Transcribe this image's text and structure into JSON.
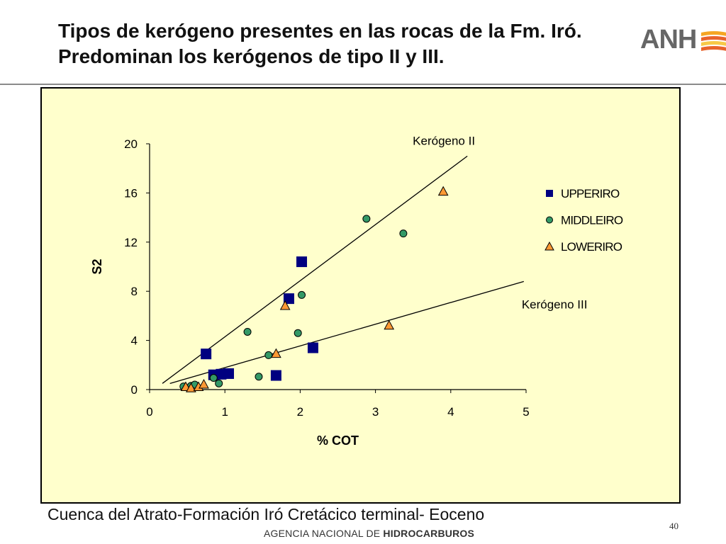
{
  "slide": {
    "title": "Tipos de kerógeno presentes en las rocas de la Fm. Iró. Predominan los kerógenos de tipo II y III.",
    "logo_text": "ANH",
    "caption": "Cuenca del Atrato-Formación Iró Cretácico terminal- Eoceno",
    "agency_prefix": "AGENCIA NACIONAL DE ",
    "agency_bold": "HIDROCARBUROS",
    "page_number": "40"
  },
  "colors": {
    "plot_background": "#ffffcc",
    "upperiro": "#000080",
    "middleiro": "#339966",
    "loweriro": "#ff9933",
    "logo_stripe_1": "#f5a623",
    "logo_stripe_2": "#e8632b",
    "logo_stripe_3": "#f7c948"
  },
  "chart_data": {
    "type": "scatter",
    "xlabel": "% COT",
    "ylabel": "S2",
    "xlim": [
      0,
      5
    ],
    "ylim": [
      0,
      20
    ],
    "xticks": [
      0,
      1,
      2,
      3,
      4,
      5
    ],
    "yticks": [
      0,
      4,
      8,
      12,
      16,
      20
    ],
    "grid": false,
    "legend_position": "right",
    "series": [
      {
        "name": "UPPERIRO",
        "marker": "square",
        "color": "#000080",
        "points": [
          [
            0.75,
            2.9
          ],
          [
            0.85,
            1.2
          ],
          [
            0.95,
            1.25
          ],
          [
            1.05,
            1.3
          ],
          [
            1.68,
            1.15
          ],
          [
            1.85,
            7.4
          ],
          [
            2.02,
            10.4
          ],
          [
            2.17,
            3.4
          ]
        ]
      },
      {
        "name": "MIDDLEIRO",
        "marker": "circle",
        "color": "#339966",
        "points": [
          [
            0.45,
            0.25
          ],
          [
            0.55,
            0.3
          ],
          [
            0.6,
            0.4
          ],
          [
            0.85,
            0.95
          ],
          [
            0.92,
            0.5
          ],
          [
            1.3,
            4.7
          ],
          [
            1.45,
            1.05
          ],
          [
            1.58,
            2.8
          ],
          [
            1.97,
            4.6
          ],
          [
            2.02,
            7.7
          ],
          [
            2.88,
            13.9
          ],
          [
            3.37,
            12.7
          ]
        ]
      },
      {
        "name": "LOWERIRO",
        "marker": "triangle",
        "color": "#ff9933",
        "points": [
          [
            0.48,
            0.2
          ],
          [
            0.55,
            0.1
          ],
          [
            0.65,
            0.2
          ],
          [
            0.72,
            0.4
          ],
          [
            1.68,
            2.9
          ],
          [
            1.8,
            6.8
          ],
          [
            3.18,
            5.2
          ],
          [
            3.9,
            16.1
          ]
        ]
      }
    ],
    "lines": [
      {
        "label": "Kerógeno II",
        "x": [
          0.17,
          4.22
        ],
        "y": [
          0.5,
          19.0
        ]
      },
      {
        "label": "Kerógeno III",
        "x": [
          0.27,
          4.97
        ],
        "y": [
          0.5,
          8.8
        ]
      }
    ]
  }
}
